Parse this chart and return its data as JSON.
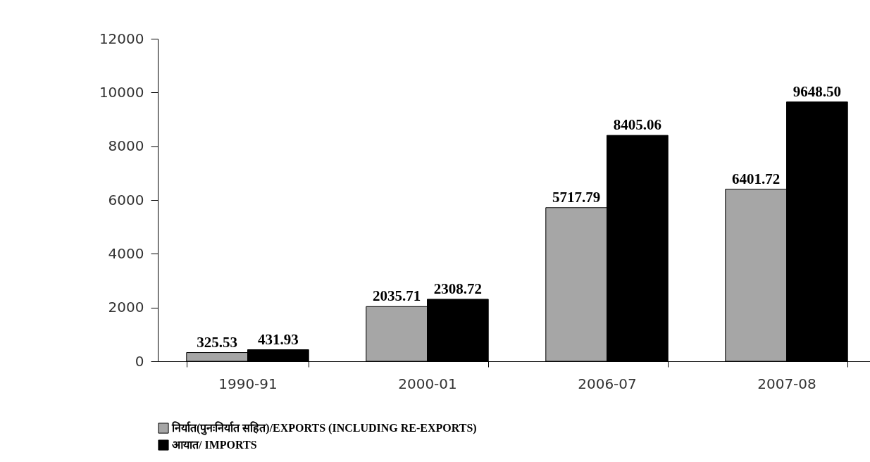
{
  "chart_data": {
    "type": "bar",
    "categories": [
      "1990-91",
      "2000-01",
      "2006-07",
      "2007-08"
    ],
    "series": [
      {
        "name": "निर्यात(पुनःनिर्यात सहित)/EXPORTS (INCLUDING RE-EXPORTS)",
        "color": "#a6a6a6",
        "values": [
          325.53,
          2035.71,
          5717.79,
          6401.72
        ],
        "value_labels": [
          "325.53",
          "2035.71",
          "5717.79",
          "6401.72"
        ]
      },
      {
        "name": "आयात/ IMPORTS",
        "color": "#000000",
        "values": [
          431.93,
          2308.72,
          8405.06,
          9648.5
        ],
        "value_labels": [
          "431.93",
          "2308.72",
          "8405.06",
          "9648.50"
        ]
      }
    ],
    "ylim": [
      0,
      12000
    ],
    "yticks": [
      0,
      2000,
      4000,
      6000,
      8000,
      10000,
      12000
    ],
    "grid": false,
    "legend": "bottom"
  }
}
